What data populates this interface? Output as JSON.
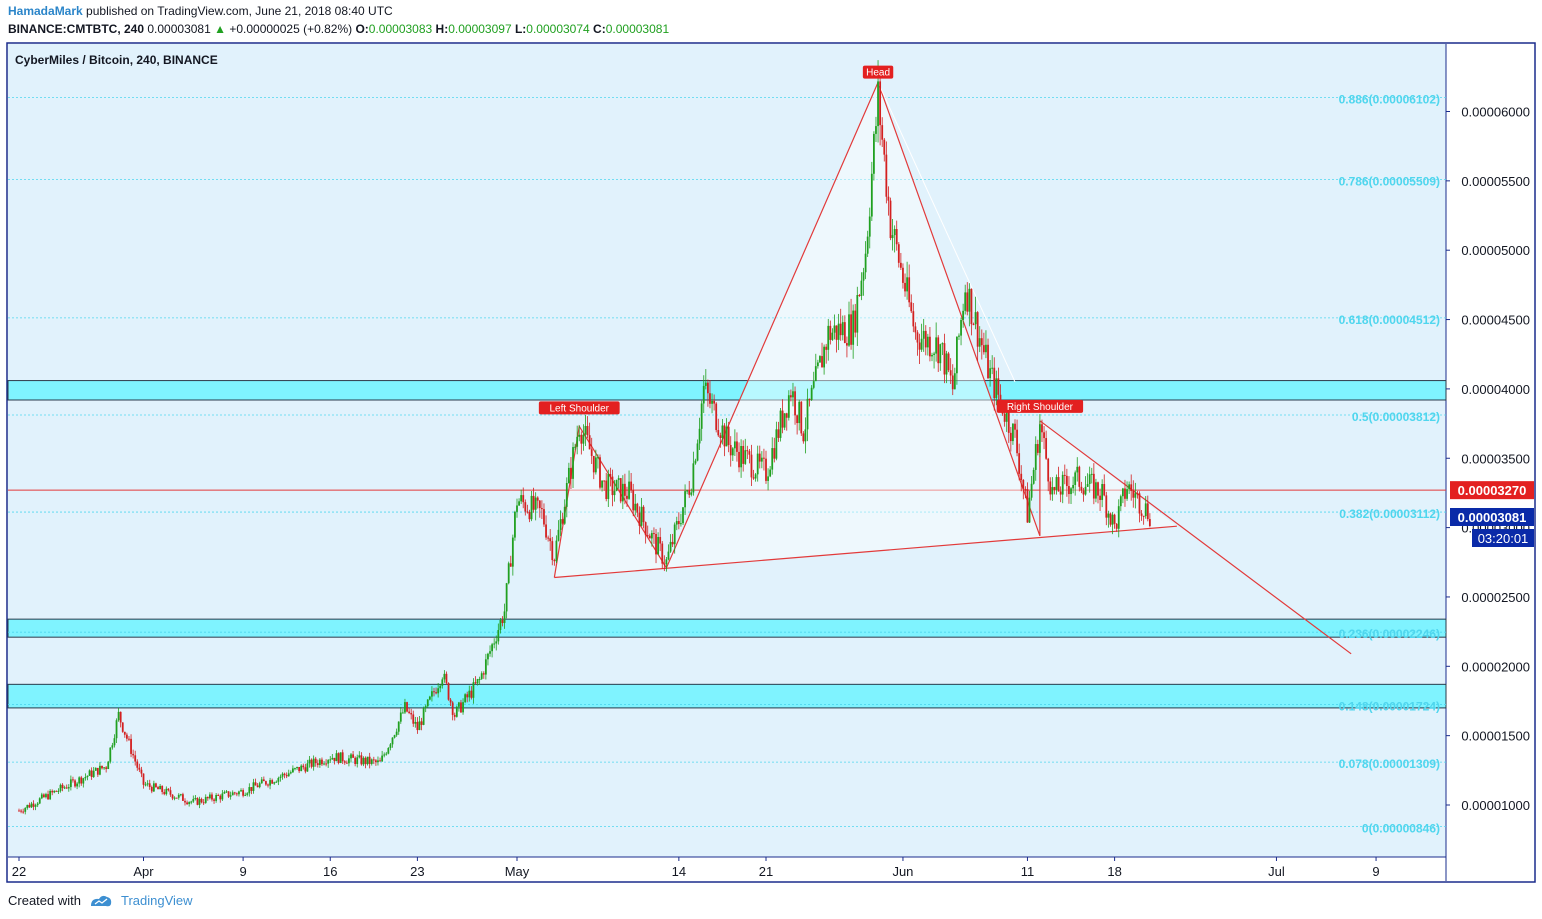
{
  "header": {
    "author": "HamadaMark",
    "published": "published on TradingView.com, June 21, 2018 08:40 UTC",
    "symbol": "BINANCE:CMTBTC, 240",
    "last": "0.00003081",
    "arrow": "▲",
    "change": "+0.00000025 (+0.82%)",
    "o_label": "O:",
    "o": "0.00003083",
    "h_label": "H:",
    "h": "0.00003097",
    "l_label": "L:",
    "l": "0.00003074",
    "c_label": "C:",
    "c": "0.00003081"
  },
  "footer": {
    "created": "Created with",
    "brand": "TradingView"
  },
  "colors": {
    "up": "#20a020",
    "down": "#d32020",
    "zone": "#7ff3ff",
    "fib": "#4fd6ee",
    "pattern": "#e23a3a",
    "panel": "#e1f2fc",
    "axis_border": "#1a2c8c"
  },
  "chart_data": {
    "type": "candlestick",
    "title": "CyberMiles / Bitcoin, 240, BINANCE",
    "ylim": [
      4.2e-06,
      6.4e-06
    ],
    "y_ticks": [
      "0.00001000",
      "0.00001500",
      "0.00002000",
      "0.00002500",
      "0.00003000",
      "0.00003500",
      "0.00004000",
      "0.00004500",
      "0.00005000",
      "0.00005500",
      "0.00006000"
    ],
    "x_ticks": [
      {
        "label": "22",
        "date": "2018-03-22"
      },
      {
        "label": "Apr",
        "date": "2018-04-01"
      },
      {
        "label": "9",
        "date": "2018-04-09"
      },
      {
        "label": "16",
        "date": "2018-04-16"
      },
      {
        "label": "23",
        "date": "2018-04-23"
      },
      {
        "label": "May",
        "date": "2018-05-01"
      },
      {
        "label": "14",
        "date": "2018-05-14"
      },
      {
        "label": "21",
        "date": "2018-05-21"
      },
      {
        "label": "Jun",
        "date": "2018-06-01"
      },
      {
        "label": "11",
        "date": "2018-06-11"
      },
      {
        "label": "18",
        "date": "2018-06-18"
      },
      {
        "label": "Jul",
        "date": "2018-07-01"
      },
      {
        "label": "9",
        "date": "2018-07-09"
      }
    ],
    "price_anchors": [
      [
        "2018-03-22",
        9.6e-06
      ],
      [
        "2018-03-25",
        1.1e-05
      ],
      [
        "2018-03-29",
        1.28e-05
      ],
      [
        "2018-03-30",
        1.65e-05
      ],
      [
        "2018-04-01",
        1.15e-05
      ],
      [
        "2018-04-05",
        1.02e-05
      ],
      [
        "2018-04-09",
        1.1e-05
      ],
      [
        "2018-04-16",
        1.35e-05
      ],
      [
        "2018-04-20",
        1.3e-05
      ],
      [
        "2018-04-22",
        1.7e-05
      ],
      [
        "2018-04-23",
        1.55e-05
      ],
      [
        "2018-04-25",
        1.95e-05
      ],
      [
        "2018-04-26",
        1.65e-05
      ],
      [
        "2018-04-28",
        1.9e-05
      ],
      [
        "2018-04-30",
        2.4e-05
      ],
      [
        "2018-05-01",
        3.2e-05
      ],
      [
        "2018-05-03",
        3.1e-05
      ],
      [
        "2018-05-04",
        2.8e-05
      ],
      [
        "2018-05-06",
        3.75e-05
      ],
      [
        "2018-05-08",
        3.3e-05
      ],
      [
        "2018-05-10",
        3.25e-05
      ],
      [
        "2018-05-12",
        2.9e-05
      ],
      [
        "2018-05-13",
        2.75e-05
      ],
      [
        "2018-05-15",
        3.35e-05
      ],
      [
        "2018-05-16",
        4e-05
      ],
      [
        "2018-05-18",
        3.6e-05
      ],
      [
        "2018-05-20",
        3.45e-05
      ],
      [
        "2018-05-21",
        3.4e-05
      ],
      [
        "2018-05-23",
        4e-05
      ],
      [
        "2018-05-24",
        3.7e-05
      ],
      [
        "2018-05-26",
        4.4e-05
      ],
      [
        "2018-05-28",
        4.45e-05
      ],
      [
        "2018-05-29",
        5e-05
      ],
      [
        "2018-05-30",
        6.1e-05
      ],
      [
        "2018-05-31",
        5.2e-05
      ],
      [
        "2018-06-01",
        4.8e-05
      ],
      [
        "2018-06-02",
        4.4e-05
      ],
      [
        "2018-06-04",
        4.3e-05
      ],
      [
        "2018-06-05",
        4e-05
      ],
      [
        "2018-06-06",
        4.75e-05
      ],
      [
        "2018-06-08",
        4.1e-05
      ],
      [
        "2018-06-10",
        3.65e-05
      ],
      [
        "2018-06-11",
        3.1e-05
      ],
      [
        "2018-06-12",
        3.75e-05
      ],
      [
        "2018-06-13",
        3.25e-05
      ],
      [
        "2018-06-15",
        3.35e-05
      ],
      [
        "2018-06-17",
        3.25e-05
      ],
      [
        "2018-06-18",
        3e-05
      ],
      [
        "2018-06-19",
        3.3e-05
      ],
      [
        "2018-06-21",
        3.08e-05
      ]
    ],
    "last_price": "0.00003081",
    "last_price_tag": "0.00003081",
    "countdown": "03:20:01",
    "red_level": {
      "value": 3.27e-05,
      "label": "0.00003270"
    },
    "support_zones": [
      {
        "from": 3.92e-05,
        "to": 4.06e-05
      },
      {
        "from": 2.21e-05,
        "to": 2.34e-05
      },
      {
        "from": 1.7e-05,
        "to": 1.87e-05
      }
    ],
    "fib_levels": [
      {
        "ratio": 0.886,
        "value": 6.102e-05,
        "label": "0.886(0.00006102)"
      },
      {
        "ratio": 0.786,
        "value": 5.509e-05,
        "label": "0.786(0.00005509)"
      },
      {
        "ratio": 0.618,
        "value": 4.512e-05,
        "label": "0.618(0.00004512)"
      },
      {
        "ratio": 0.5,
        "value": 3.812e-05,
        "label": "0.5(0.00003812)"
      },
      {
        "ratio": 0.382,
        "value": 3.112e-05,
        "label": "0.382(0.00003112)"
      },
      {
        "ratio": 0.236,
        "value": 2.246e-05,
        "label": "0.236(0.00002246)"
      },
      {
        "ratio": 0.148,
        "value": 1.724e-05,
        "label": "0.148(0.00001724)"
      },
      {
        "ratio": 0.078,
        "value": 1.309e-05,
        "label": "0.078(0.00001309)"
      },
      {
        "ratio": 0,
        "value": 8.46e-06,
        "label": "0(0.00000846)"
      }
    ],
    "annotations": [
      {
        "text": "Head",
        "date": "2018-05-30",
        "value": 6.28e-05
      },
      {
        "text": "Left Shoulder",
        "date": "2018-05-06",
        "value": 3.86e-05
      },
      {
        "text": "Right Shoulder",
        "date": "2018-06-12",
        "value": 3.87e-05
      }
    ],
    "pattern_points": {
      "left_low": [
        "2018-05-04",
        2.64e-05
      ],
      "left_shoulder": [
        "2018-05-06",
        3.73e-05
      ],
      "mid_low1": [
        "2018-05-13",
        2.71e-05
      ],
      "head": [
        "2018-05-30",
        6.21e-05
      ],
      "mid_low2": [
        "2018-06-12",
        2.94e-05
      ],
      "right_shoulder": [
        "2018-06-12",
        3.77e-05
      ],
      "neck_end": [
        "2018-06-23",
        3.01e-05
      ],
      "projection_end": [
        "2018-07-07",
        2.09e-05
      ]
    }
  }
}
